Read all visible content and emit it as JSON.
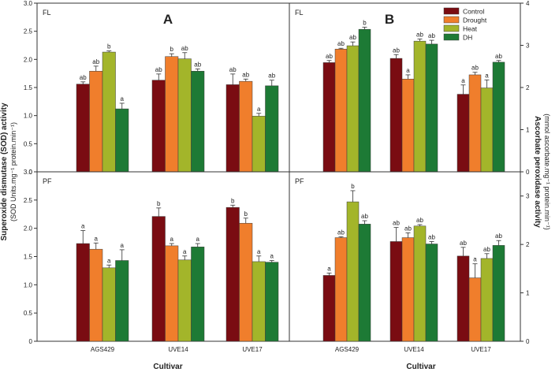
{
  "figure": {
    "y_left_title": "Superoxide dismutase (SOD) activity",
    "y_left_units": "(SOD Units.mg⁻¹ protein.min⁻¹)",
    "y_right_title": "Ascorbate peroxidase activity",
    "y_right_units": "(mmol ascorbate.mg⁻¹ protein.min⁻¹)",
    "x_title_left": "Cultivar",
    "x_title_right": "Cultivar",
    "legend_entries": [
      "Control",
      "Drought",
      "Heat",
      "DH"
    ]
  },
  "chart_data": [
    {
      "type": "bar",
      "id": "sod-fl",
      "tag": "FL",
      "letter": "A",
      "categories": [
        "AGS429",
        "UVE14",
        "UVE17"
      ],
      "ylim": [
        0,
        3.0
      ],
      "yticks": [
        "0",
        "0.5",
        "1.0",
        "1.5",
        "2.0",
        "2.5",
        "3.0"
      ],
      "series": [
        {
          "name": "Control",
          "values": [
            1.56,
            1.63,
            1.55
          ],
          "errors": [
            0.04,
            0.11,
            0.19
          ],
          "labels": [
            "ab",
            "ab",
            "ab"
          ]
        },
        {
          "name": "Drought",
          "values": [
            1.79,
            2.05,
            1.61
          ],
          "errors": [
            0.09,
            0.05,
            0.04
          ],
          "labels": [
            "ab",
            "b",
            "ab"
          ]
        },
        {
          "name": "Heat",
          "values": [
            2.13,
            2.01,
            0.99
          ],
          "errors": [
            0.02,
            0.11,
            0.05
          ],
          "labels": [
            "b",
            "ab",
            "a"
          ]
        },
        {
          "name": "DH",
          "values": [
            1.12,
            1.79,
            1.53
          ],
          "errors": [
            0.1,
            0.04,
            0.1
          ],
          "labels": [
            "a",
            "ab",
            "ab"
          ]
        }
      ]
    },
    {
      "type": "bar",
      "id": "apx-fl",
      "tag": "FL",
      "letter": "B",
      "categories": [
        "AGS429",
        "UVE14",
        "UVE17"
      ],
      "ylim": [
        0,
        4
      ],
      "yticks": [
        "0",
        "1",
        "2",
        "3",
        "4"
      ],
      "series": [
        {
          "name": "Control",
          "values": [
            2.59,
            2.69,
            1.84
          ],
          "errors": [
            0.05,
            0.09,
            0.22
          ],
          "labels": [
            "ab",
            "ab",
            "a"
          ]
        },
        {
          "name": "Drought",
          "values": [
            2.91,
            2.2,
            2.3
          ],
          "errors": [
            0.02,
            0.1,
            0.06
          ],
          "labels": [
            "ab",
            "a",
            "ab"
          ]
        },
        {
          "name": "Heat",
          "values": [
            2.99,
            3.1,
            1.99
          ],
          "errors": [
            0.09,
            0.05,
            0.19
          ],
          "labels": [
            "ab",
            "ab",
            "a"
          ]
        },
        {
          "name": "DH",
          "values": [
            3.38,
            3.03,
            2.6
          ],
          "errors": [
            0.05,
            0.09,
            0.04
          ],
          "labels": [
            "b",
            "ab",
            "ab"
          ]
        }
      ]
    },
    {
      "type": "bar",
      "id": "sod-pf",
      "tag": "PF",
      "letter": "",
      "categories": [
        "AGS429",
        "UVE14",
        "UVE17"
      ],
      "ylim": [
        0,
        3.0
      ],
      "yticks": [
        "0",
        "0.5",
        "1.0",
        "1.5",
        "2.0",
        "2.5",
        "3.0"
      ],
      "series": [
        {
          "name": "Control",
          "values": [
            1.73,
            2.21,
            2.37
          ],
          "errors": [
            0.23,
            0.15,
            0.04
          ],
          "labels": [
            "a",
            "b",
            "b"
          ]
        },
        {
          "name": "Drought",
          "values": [
            1.63,
            1.69,
            2.09
          ],
          "errors": [
            0.11,
            0.04,
            0.09
          ],
          "labels": [
            "a",
            "a",
            "b"
          ]
        },
        {
          "name": "Heat",
          "values": [
            1.3,
            1.44,
            1.41
          ],
          "errors": [
            0.05,
            0.07,
            0.1
          ],
          "labels": [
            "a",
            "a",
            "a"
          ]
        },
        {
          "name": "DH",
          "values": [
            1.43,
            1.67,
            1.4
          ],
          "errors": [
            0.19,
            0.06,
            0.03
          ],
          "labels": [
            "a",
            "a",
            "a"
          ]
        }
      ]
    },
    {
      "type": "bar",
      "id": "apx-pf",
      "tag": "PF",
      "letter": "",
      "categories": [
        "AGS429",
        "UVE14",
        "UVE17"
      ],
      "ylim": [
        0,
        3.5
      ],
      "yticks": [
        "0",
        "1",
        "2",
        "3"
      ],
      "series": [
        {
          "name": "Control",
          "values": [
            1.36,
            2.06,
            1.76
          ],
          "errors": [
            0.05,
            0.29,
            0.18
          ],
          "labels": [
            "a",
            "ab",
            "ab"
          ]
        },
        {
          "name": "Drought",
          "values": [
            2.14,
            2.14,
            1.31
          ],
          "errors": [
            0.02,
            0.1,
            0.29
          ],
          "labels": [
            "ab",
            "ab",
            "a"
          ]
        },
        {
          "name": "Heat",
          "values": [
            2.88,
            2.38,
            1.71
          ],
          "errors": [
            0.23,
            0.03,
            0.1
          ],
          "labels": [
            "b",
            "ab",
            "ab"
          ]
        },
        {
          "name": "DH",
          "values": [
            2.42,
            2.01,
            1.98
          ],
          "errors": [
            0.07,
            0.05,
            0.1
          ],
          "labels": [
            "ab",
            "ab",
            "ab"
          ]
        }
      ]
    }
  ],
  "colors": {
    "Control": "#7a0c12",
    "Drought": "#f07e2c",
    "Heat": "#a3b52a",
    "DH": "#1d7a35"
  }
}
